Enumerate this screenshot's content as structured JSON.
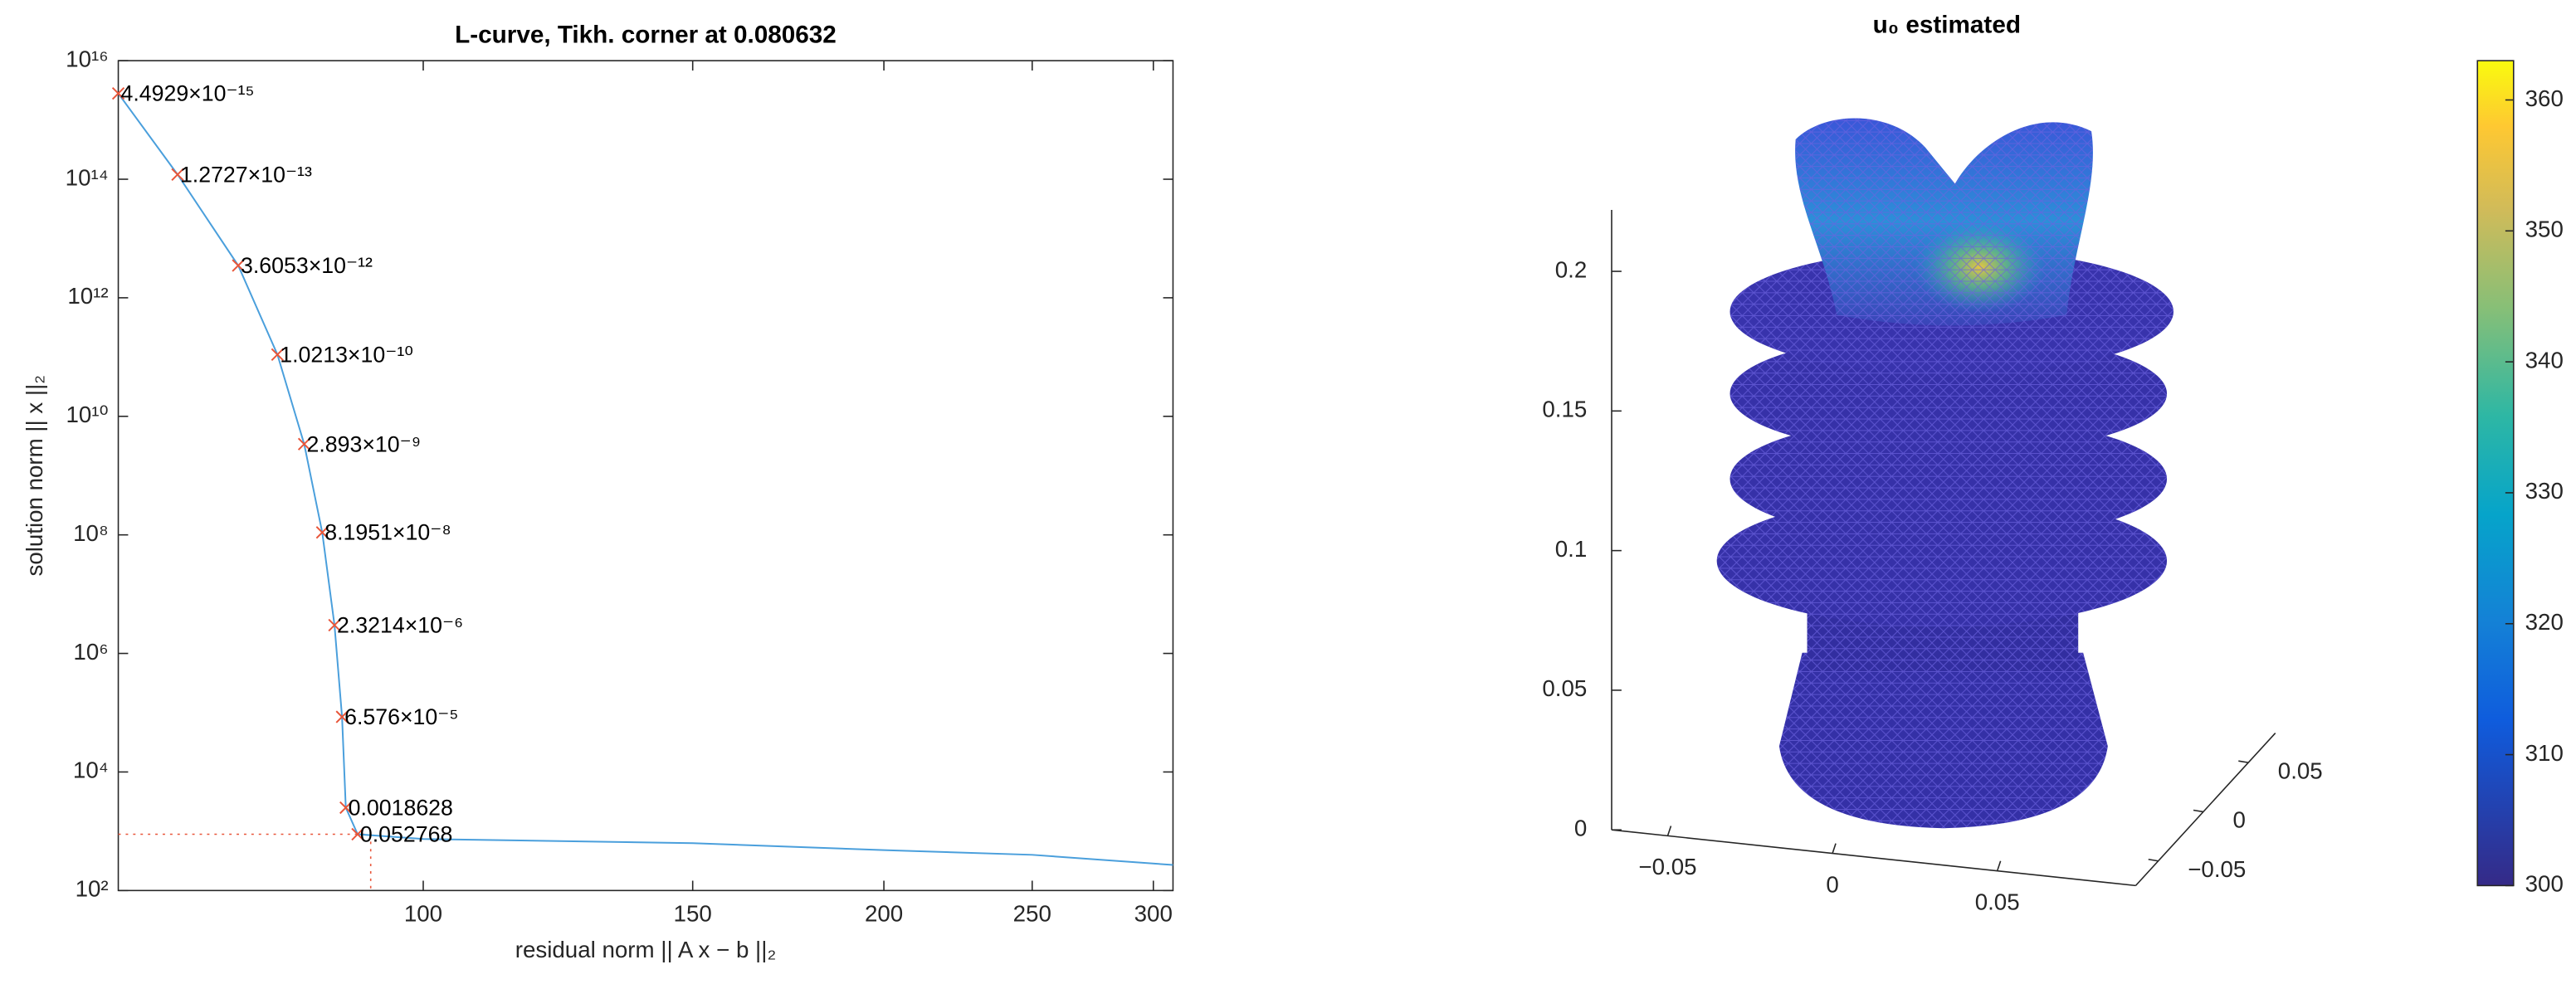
{
  "chart_data": [
    {
      "type": "line",
      "title": "L-curve, Tikh. corner at 0.080632",
      "x_label": "residual norm || A x − b ||₂",
      "y_label": "solution norm || x ||₂",
      "xscale": "log",
      "yscale": "log",
      "xlim": [
        63.2,
        309
      ],
      "ylim": [
        100,
        1e+16
      ],
      "xticks": [
        100,
        150,
        200,
        250,
        300
      ],
      "yticks": [
        {
          "value": 100,
          "label": "10²"
        },
        {
          "value": 10000,
          "label": "10⁴"
        },
        {
          "value": 1000000,
          "label": "10⁶"
        },
        {
          "value": 100000000,
          "label": "10⁸"
        },
        {
          "value": 10000000000,
          "label": "10¹⁰"
        },
        {
          "value": 1000000000000,
          "label": "10¹²"
        },
        {
          "value": 100000000000000,
          "label": "10¹⁴"
        },
        {
          "value": 10000000000000000,
          "label": "10¹⁶"
        }
      ],
      "series": [
        {
          "color": "#4a9fdc",
          "x": [
            63.2,
            69.1,
            75.7,
            80.3,
            83.6,
            85.9,
            87.5,
            88.5,
            89.0,
            90.6,
            100,
            150,
            200,
            250,
            309
          ],
          "values": [
            2800000000000000.0,
            120000000000000.0,
            3500000000000.0,
            110000000000.0,
            3400000000.0,
            110000000.0,
            3000000.0,
            85000,
            2500,
            890,
            740,
            630,
            480,
            400,
            270
          ]
        },
        {
          "color": "#e8563a",
          "marker": "x",
          "x": [
            63.2,
            69.1,
            75.7,
            80.3,
            83.6,
            85.9,
            87.5,
            88.5,
            89.0,
            90.6
          ],
          "values": [
            2800000000000000.0,
            120000000000000.0,
            3500000000000.0,
            110000000000.0,
            3400000000.0,
            110000000.0,
            3000000.0,
            85000,
            2500,
            890
          ],
          "labels": [
            "4.4929×10⁻¹⁵",
            "1.2727×10⁻¹³",
            "3.6053×10⁻¹²",
            "1.0213×10⁻¹⁰",
            "2.893×10⁻⁹",
            "8.1951×10⁻⁸",
            "2.3214×10⁻⁶",
            "6.576×10⁻⁵",
            "0.0018628",
            "0.052768"
          ]
        }
      ],
      "corner": {
        "x": 92.4,
        "y": 890,
        "color": "#e8563a"
      }
    },
    {
      "type": "mesh3d",
      "title": "u₀ estimated",
      "xlim": [
        -0.067,
        0.092
      ],
      "xticks": [
        {
          "value": -0.05,
          "label": "−0.05"
        },
        0,
        0.05
      ],
      "ylim": [
        -0.075,
        0.08
      ],
      "yticks": [
        {
          "value": -0.05,
          "label": "−0.05"
        },
        0,
        0.05
      ],
      "zlim": [
        0,
        0.222
      ],
      "zticks": [
        0,
        0.05,
        0.1,
        0.15,
        0.2
      ],
      "clim": [
        300,
        363
      ],
      "cticks": [
        300,
        310,
        320,
        330,
        340,
        350,
        360
      ]
    }
  ]
}
